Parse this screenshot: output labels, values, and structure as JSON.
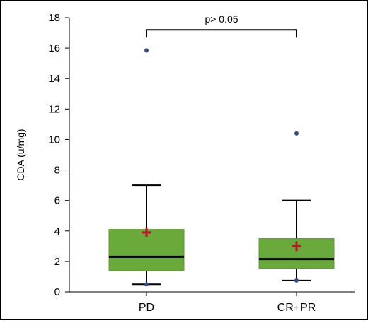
{
  "chart_data": {
    "type": "box",
    "ylabel": "CDA (u/mg)",
    "xlabel": "",
    "ylim": [
      0,
      18
    ],
    "yticks": [
      0,
      2,
      4,
      6,
      8,
      10,
      12,
      14,
      16,
      18
    ],
    "categories": [
      "PD",
      "CR+PR"
    ],
    "boxes": [
      {
        "category": "PD",
        "whisker_low": 0.5,
        "q1": 1.4,
        "median": 2.3,
        "q3": 4.1,
        "whisker_high": 7.0,
        "mean": 3.9,
        "outliers": [
          15.85,
          0.5
        ]
      },
      {
        "category": "CR+PR",
        "whisker_low": 0.75,
        "q1": 1.55,
        "median": 2.15,
        "q3": 3.5,
        "whisker_high": 6.0,
        "mean": 3.0,
        "outliers": [
          10.4,
          0.75
        ]
      }
    ],
    "annotation": {
      "text": "p> 0.05",
      "bracket_y": 17.2
    },
    "colors": {
      "box_fill": "#6aaa3a",
      "box_edge": "#5d9a30",
      "median": "#000000",
      "mean_marker": "#c8102e",
      "outlier": "#2f4e8c"
    }
  }
}
